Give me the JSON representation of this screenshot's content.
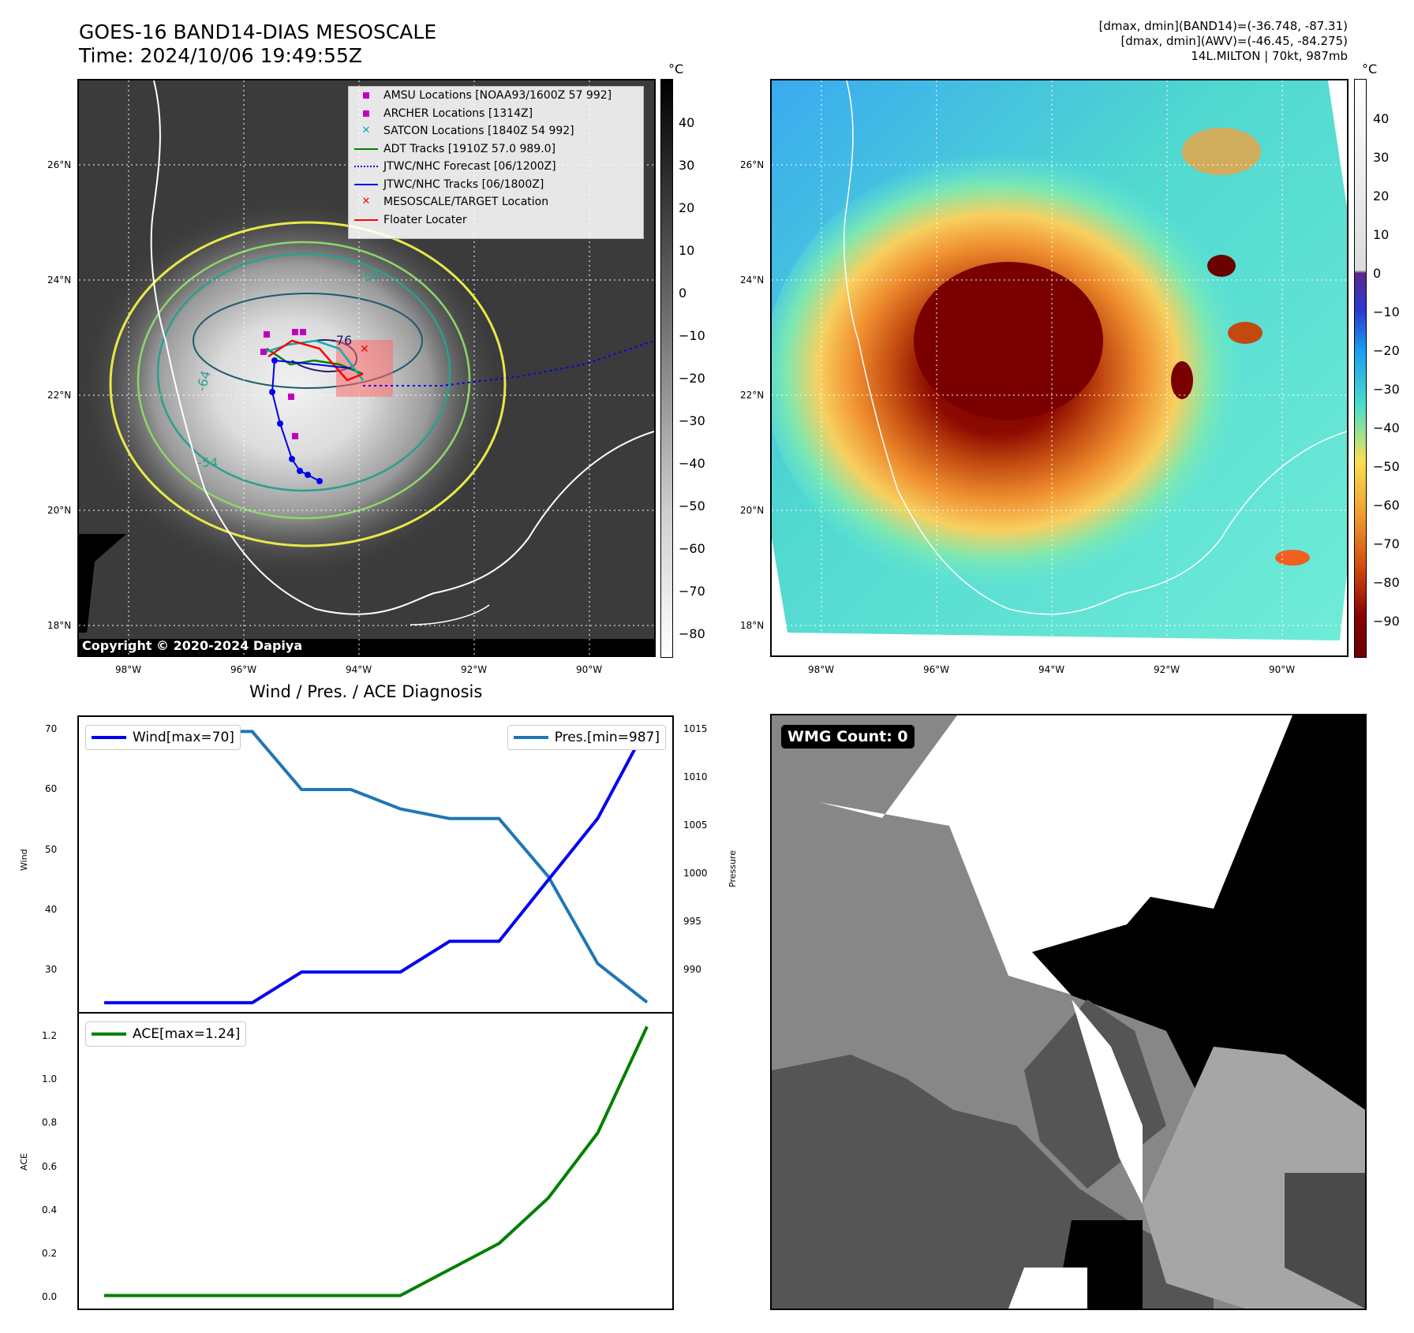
{
  "header": {
    "title_line1": "GOES-16 BAND14-DIAS MESOSCALE",
    "title_line2": "Time: 2024/10/06 19:49:55Z",
    "info_line1": "[dmax, dmin](BAND14)=(-36.748, -87.31)",
    "info_line2": "[dmax, dmin](AWV)=(-46.45, -84.275)",
    "info_line3": "14L.MILTON | 70kt, 987mb"
  },
  "map": {
    "lat_labels": [
      "26°N",
      "24°N",
      "22°N",
      "20°N",
      "18°N"
    ],
    "lon_labels": [
      "98°W",
      "96°W",
      "94°W",
      "92°W",
      "90°W"
    ],
    "copyright": "Copyright © 2020-2024 Dapiya",
    "contour_labels": [
      "-54",
      "-76",
      "-64",
      "-54"
    ]
  },
  "colorbar_left": {
    "unit": "°C",
    "ticks": [
      "40",
      "30",
      "20",
      "10",
      "0",
      "−10",
      "−20",
      "−30",
      "−40",
      "−50",
      "−60",
      "−70",
      "−80"
    ]
  },
  "colorbar_right": {
    "unit": "°C",
    "ticks": [
      "40",
      "30",
      "20",
      "10",
      "0",
      "−10",
      "−20",
      "−30",
      "−40",
      "−50",
      "−60",
      "−70",
      "−80",
      "−90"
    ]
  },
  "legend": {
    "items": [
      {
        "label": "AMSU Locations [NOAA93/1600Z 57 992]",
        "color": "#c000c0"
      },
      {
        "label": "ARCHER Locations [1314Z]",
        "color": "#c000c0"
      },
      {
        "label": "SATCON Locations [1840Z 54 992]",
        "color": "#00b0b0"
      },
      {
        "label": "ADT Tracks [1910Z 57.0 989.0]",
        "color": "#008000"
      },
      {
        "label": "JTWC/NHC Forecast [06/1200Z]",
        "color": "#0000ff"
      },
      {
        "label": "JTWC/NHC Tracks [06/1800Z]",
        "color": "#0000ff"
      },
      {
        "label": "MESOSCALE/TARGET Location",
        "color": "#ff0000"
      },
      {
        "label": "Floater Locater",
        "color": "#ff0000"
      }
    ]
  },
  "diag": {
    "title": "Wind / Pres. / ACE Diagnosis",
    "wind_label": "Wind",
    "pressure_label": "Pressure",
    "ace_label": "ACE",
    "wind_legend": "Wind[max=70]",
    "pres_legend": "Pres.[min=987]",
    "ace_legend": "ACE[max=1.24]",
    "wind_ticks": [
      "70",
      "60",
      "50",
      "40",
      "30"
    ],
    "pres_ticks": [
      "1015",
      "1010",
      "1005",
      "1000",
      "995",
      "990"
    ],
    "ace_ticks": [
      "1.2",
      "1.0",
      "0.8",
      "0.6",
      "0.4",
      "0.2",
      "0.0"
    ]
  },
  "wmg": {
    "label": "WMG Count: 0"
  },
  "chart_data": [
    {
      "type": "line",
      "title": "Wind / Pres. / ACE Diagnosis",
      "x": [
        0,
        1,
        2,
        3,
        4,
        5,
        6,
        7,
        8,
        9,
        10,
        11
      ],
      "series": [
        {
          "name": "Wind[max=70]",
          "axis": "left",
          "color": "#0000ee",
          "values": [
            25,
            25,
            25,
            25,
            30,
            30,
            30,
            35,
            35,
            45,
            55,
            70
          ]
        },
        {
          "name": "Pres.[min=987]",
          "axis": "right",
          "color": "#1f77b4",
          "values": [
            1015,
            1015,
            1015,
            1015,
            1009,
            1009,
            1007,
            1006,
            1006,
            1000,
            991,
            987
          ]
        }
      ],
      "ylabel": "Wind",
      "ylabel_right": "Pressure",
      "ylim": [
        23.5,
        71.5
      ],
      "ylim_right": [
        986,
        1016.5
      ]
    },
    {
      "type": "line",
      "x": [
        0,
        1,
        2,
        3,
        4,
        5,
        6,
        7,
        8,
        9,
        10,
        11
      ],
      "series": [
        {
          "name": "ACE[max=1.24]",
          "color": "#008000",
          "values": [
            0,
            0,
            0,
            0,
            0,
            0,
            0,
            0.12,
            0.24,
            0.45,
            0.75,
            1.24
          ]
        }
      ],
      "ylabel": "ACE",
      "ylim": [
        -0.06,
        1.3
      ]
    }
  ]
}
